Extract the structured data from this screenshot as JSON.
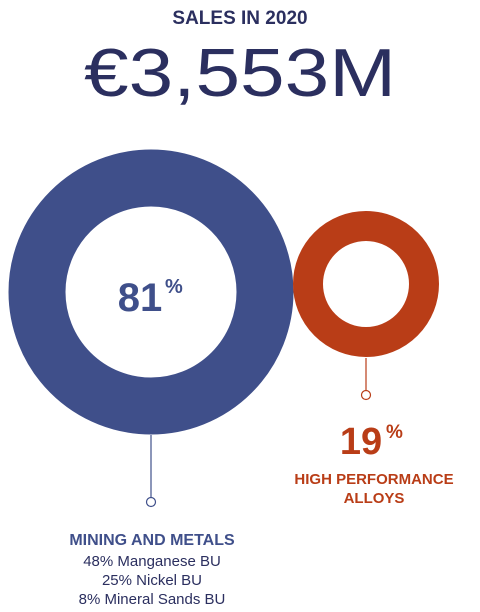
{
  "header": {
    "title": "SALES IN 2020",
    "total": "€3,553M"
  },
  "colors": {
    "navy": "#2b2f5f",
    "blue": "#3f4f8a",
    "orange": "#b93d17",
    "white": "#ffffff"
  },
  "chart_data": {
    "type": "donut",
    "title": "SALES IN 2020",
    "total": "€3,553M",
    "series": [
      {
        "name": "MINING AND METALS",
        "value": 81,
        "label_value": "81",
        "label_unit": "%",
        "color": "#3f4f8a",
        "breakdown": [
          "48% Manganese BU",
          "25% Nickel BU",
          "8% Mineral Sands BU"
        ]
      },
      {
        "name_lines": [
          "HIGH PERFORMANCE",
          "ALLOYS"
        ],
        "value": 19,
        "label_value": "19",
        "label_unit": "%",
        "color": "#b93d17"
      }
    ]
  }
}
